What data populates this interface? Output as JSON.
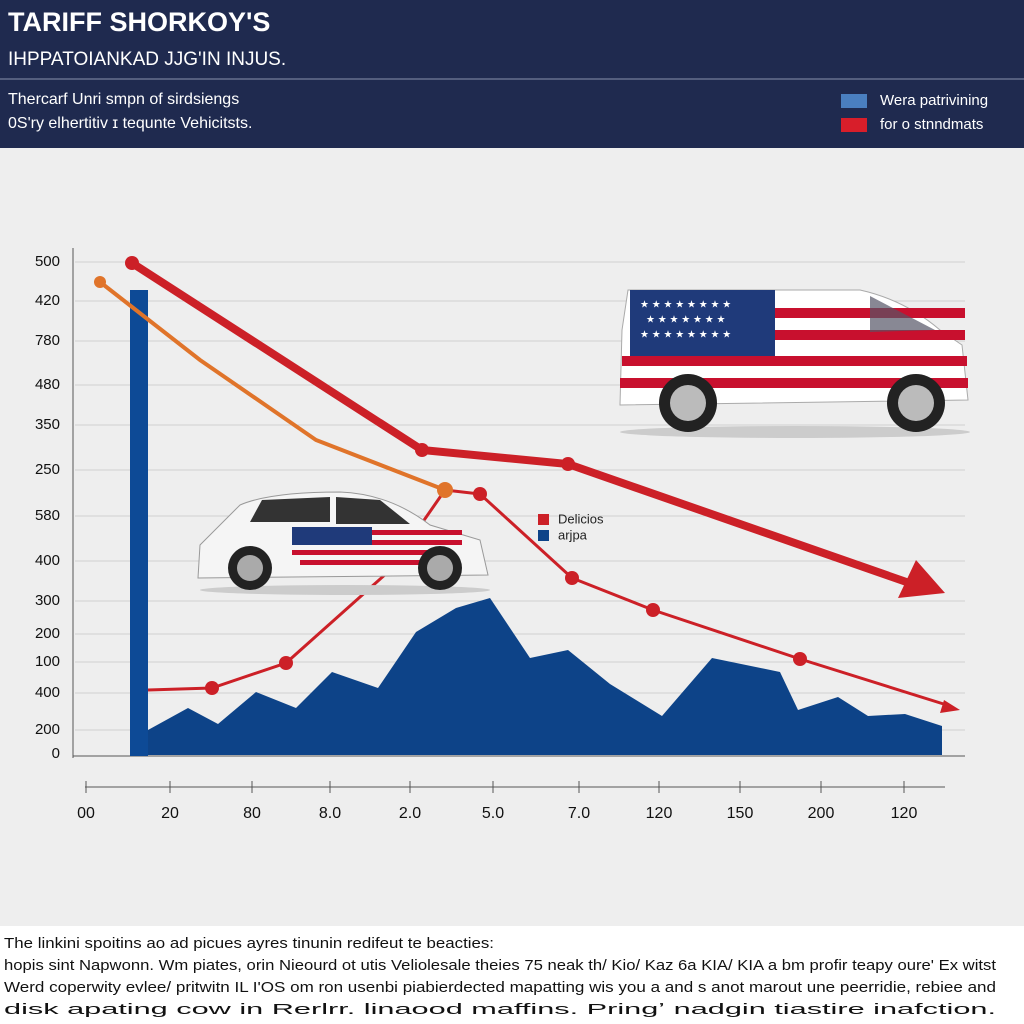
{
  "header": {
    "title": "TARIFF SHORKOY'S",
    "subtitle": "IHPPATOIANKAD JJG'IN INJUS.",
    "lines": [
      "Thercarf Unri smpn of sirdsiengs",
      "0S'ry elhertitiv ɪ tequnte Vehicitsts."
    ]
  },
  "legend": [
    "Wera patrivining",
    "for o stnndmats"
  ],
  "y_labels": [
    "500",
    "420",
    "780",
    "480",
    "350",
    "250",
    "580",
    "400",
    "300",
    "200",
    "100",
    "400",
    "200",
    "0"
  ],
  "x_labels": [
    "00",
    "20",
    "80",
    "8.0",
    "2.0",
    "5.0",
    "7.0",
    "120",
    "150",
    "200",
    "120"
  ],
  "inset_legend": [
    "Delicios",
    "arjpa"
  ],
  "footer": [
    "The linkini spoitins ao ad picues ayres tinunin redifeut te beacties:",
    "hopis sint Napwonn. Wm piates, orin Nieourd ot utis Veliolesale theies 75 neak th/ Kio/ Kaz 6a KIA/ KIA a bm profir teapy oure' Ex witst",
    "Werd coperwity evlee/ pritwitn IL I'OS om ron usenbi piabierdected mapatting wis you a and s anot marout une peerridie, rebiee and",
    "disk apating cow in Rerlrr. linaood maffins. Pringʼ nadgin tiastire inafction."
  ]
}
